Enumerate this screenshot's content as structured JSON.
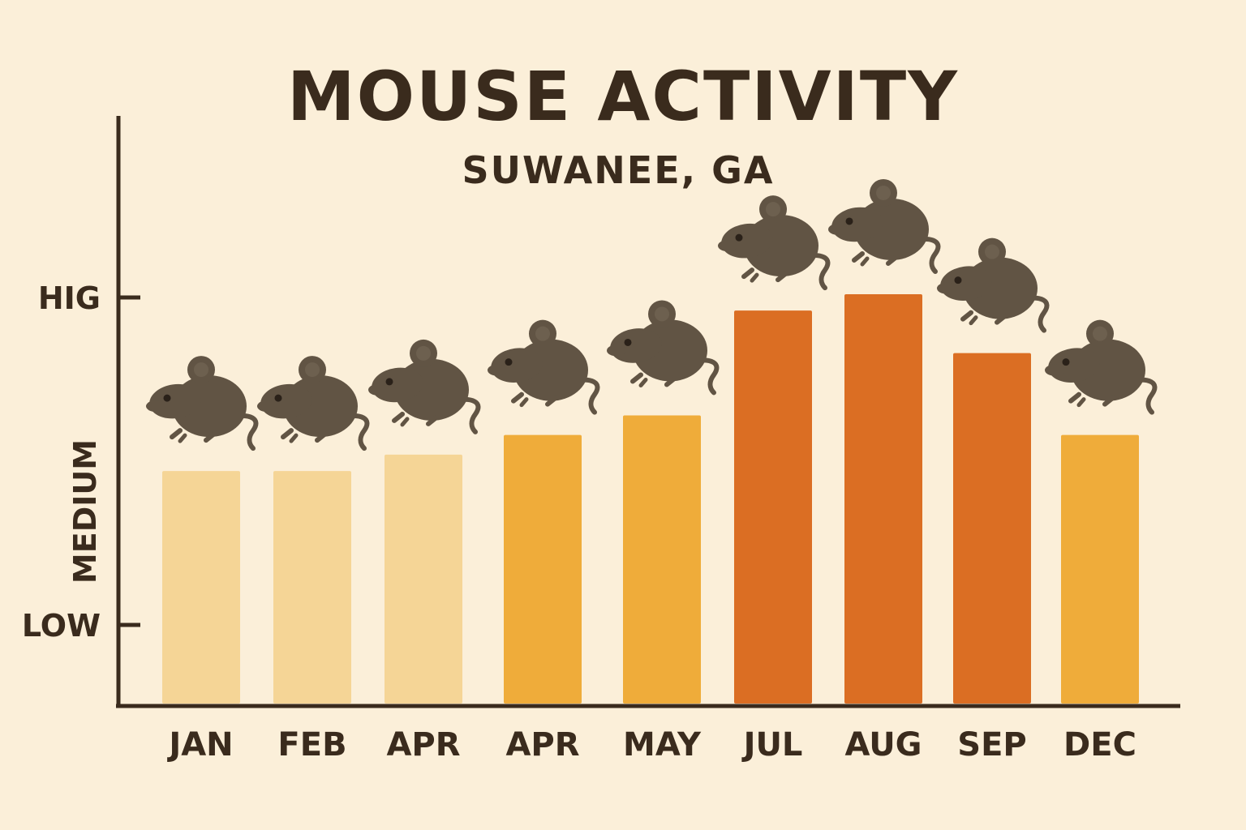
{
  "chart_data": {
    "type": "bar",
    "title": "MOUSE ACTIVITY",
    "subtitle": "SUWANEE, GA",
    "xlabel": "",
    "ylabel": "",
    "categories": [
      "JAN",
      "FEB",
      "APR",
      "APR",
      "MAY",
      "JUL",
      "AUG",
      "SEP",
      "DEC"
    ],
    "values": [
      0.47,
      0.47,
      0.52,
      0.58,
      0.64,
      0.96,
      1.01,
      0.83,
      0.58
    ],
    "y_ticks": [
      {
        "label": "LOW",
        "value": 0
      },
      {
        "label": "MEDIUM",
        "value": 0.5
      },
      {
        "label": "HIG",
        "value": 1
      }
    ],
    "ylim": [
      -0.25,
      1.55
    ],
    "bar_colors": [
      "#f5d596",
      "#f5d596",
      "#f5d596",
      "#efac3a",
      "#efac3a",
      "#db6e23",
      "#db6e23",
      "#db6e23",
      "#efac3a"
    ],
    "grid": false,
    "legend": "none",
    "decoration": "mouse-icon"
  },
  "colors": {
    "background": "#fbefd9",
    "axis": "#3a2b1d",
    "text": "#3a2b1d",
    "mouse": "#615444",
    "mouse_eye": "#2a2119",
    "low": "#f5d596",
    "medium": "#efac3a",
    "high": "#db6e23"
  }
}
